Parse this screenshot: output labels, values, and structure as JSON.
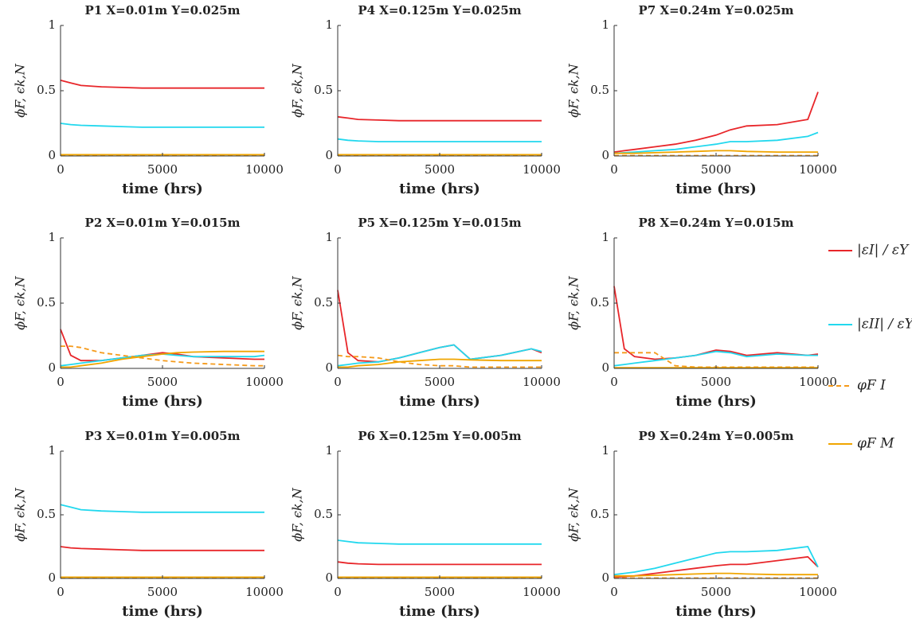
{
  "chart_data": [
    {
      "type": "line",
      "title": "P1 X=0.01m Y=0.025m",
      "xlabel": "time (hrs)",
      "ylabel": "ϕF, ϵk,N",
      "x": [
        0,
        500,
        1000,
        2000,
        3000,
        4000,
        5000,
        5700,
        6500,
        8000,
        9500,
        10000
      ],
      "xlim": [
        0,
        10000
      ],
      "xticks": [
        0,
        5000,
        10000
      ],
      "ylim": [
        0,
        1
      ],
      "yticks": [
        0,
        0.5,
        1
      ],
      "series": [
        {
          "name": "|εI| / εY",
          "color": "#e8262a",
          "values": [
            0.58,
            0.56,
            0.54,
            0.53,
            0.525,
            0.52,
            0.52,
            0.52,
            0.52,
            0.52,
            0.52,
            0.52
          ]
        },
        {
          "name": "|εII| / εY",
          "color": "#22d8ee",
          "values": [
            0.25,
            0.24,
            0.235,
            0.23,
            0.225,
            0.22,
            0.22,
            0.22,
            0.22,
            0.22,
            0.22,
            0.22
          ]
        },
        {
          "name": "φF I",
          "color": "#f59a1a",
          "dashed": true,
          "values": [
            0.005,
            0.005,
            0.005,
            0.005,
            0.005,
            0.005,
            0.005,
            0.005,
            0.005,
            0.005,
            0.005,
            0.005
          ]
        },
        {
          "name": "φF M",
          "color": "#f0a500",
          "values": [
            0.01,
            0.01,
            0.01,
            0.01,
            0.01,
            0.01,
            0.01,
            0.01,
            0.01,
            0.01,
            0.01,
            0.01
          ]
        }
      ]
    },
    {
      "type": "line",
      "title": "P2 X=0.01m Y=0.015m",
      "xlabel": "time (hrs)",
      "ylabel": "ϕF, ϵk,N",
      "x": [
        0,
        500,
        1000,
        2000,
        3000,
        4000,
        5000,
        5700,
        6500,
        8000,
        9500,
        10000
      ],
      "xlim": [
        0,
        10000
      ],
      "xticks": [
        0,
        5000,
        10000
      ],
      "ylim": [
        0,
        1
      ],
      "yticks": [
        0,
        0.5,
        1
      ],
      "series": [
        {
          "color": "#e8262a",
          "values": [
            0.3,
            0.1,
            0.06,
            0.06,
            0.08,
            0.1,
            0.12,
            0.11,
            0.09,
            0.08,
            0.07,
            0.07
          ]
        },
        {
          "color": "#22d8ee",
          "values": [
            0.02,
            0.03,
            0.04,
            0.06,
            0.08,
            0.1,
            0.11,
            0.1,
            0.09,
            0.09,
            0.09,
            0.1
          ]
        },
        {
          "color": "#f59a1a",
          "dashed": true,
          "values": [
            0.17,
            0.17,
            0.16,
            0.12,
            0.1,
            0.08,
            0.06,
            0.05,
            0.04,
            0.03,
            0.02,
            0.02
          ]
        },
        {
          "color": "#f0a500",
          "values": [
            0.01,
            0.01,
            0.02,
            0.04,
            0.07,
            0.09,
            0.11,
            0.12,
            0.125,
            0.13,
            0.13,
            0.13
          ]
        }
      ]
    },
    {
      "type": "line",
      "title": "P3 X=0.01m Y=0.005m",
      "xlabel": "time (hrs)",
      "ylabel": "ϕF, ϵk,N",
      "x": [
        0,
        500,
        1000,
        2000,
        3000,
        4000,
        5000,
        5700,
        6500,
        8000,
        9500,
        10000
      ],
      "xlim": [
        0,
        10000
      ],
      "xticks": [
        0,
        5000,
        10000
      ],
      "ylim": [
        0,
        1
      ],
      "yticks": [
        0,
        0.5,
        1
      ],
      "series": [
        {
          "color": "#e8262a",
          "values": [
            0.25,
            0.24,
            0.235,
            0.23,
            0.225,
            0.22,
            0.22,
            0.22,
            0.22,
            0.22,
            0.22,
            0.22
          ]
        },
        {
          "color": "#22d8ee",
          "values": [
            0.58,
            0.56,
            0.54,
            0.53,
            0.525,
            0.52,
            0.52,
            0.52,
            0.52,
            0.52,
            0.52,
            0.52
          ]
        },
        {
          "color": "#f59a1a",
          "dashed": true,
          "values": [
            0.005,
            0.005,
            0.005,
            0.005,
            0.005,
            0.005,
            0.005,
            0.005,
            0.005,
            0.005,
            0.005,
            0.005
          ]
        },
        {
          "color": "#f0a500",
          "values": [
            0.01,
            0.01,
            0.01,
            0.01,
            0.01,
            0.01,
            0.01,
            0.01,
            0.01,
            0.01,
            0.01,
            0.01
          ]
        }
      ]
    },
    {
      "type": "line",
      "title": "P4 X=0.125m Y=0.025m",
      "xlabel": "time (hrs)",
      "ylabel": "ϕF, ϵk,N",
      "x": [
        0,
        500,
        1000,
        2000,
        3000,
        4000,
        5000,
        5700,
        6500,
        8000,
        9500,
        10000
      ],
      "xlim": [
        0,
        10000
      ],
      "xticks": [
        0,
        5000,
        10000
      ],
      "ylim": [
        0,
        1
      ],
      "yticks": [
        0,
        0.5,
        1
      ],
      "series": [
        {
          "color": "#e8262a",
          "values": [
            0.3,
            0.29,
            0.28,
            0.275,
            0.27,
            0.27,
            0.27,
            0.27,
            0.27,
            0.27,
            0.27,
            0.27
          ]
        },
        {
          "color": "#22d8ee",
          "values": [
            0.13,
            0.12,
            0.115,
            0.11,
            0.11,
            0.11,
            0.11,
            0.11,
            0.11,
            0.11,
            0.11,
            0.11
          ]
        },
        {
          "color": "#f59a1a",
          "dashed": true,
          "values": [
            0.005,
            0.005,
            0.005,
            0.005,
            0.005,
            0.005,
            0.005,
            0.005,
            0.005,
            0.005,
            0.005,
            0.005
          ]
        },
        {
          "color": "#f0a500",
          "values": [
            0.01,
            0.01,
            0.01,
            0.01,
            0.01,
            0.01,
            0.01,
            0.01,
            0.01,
            0.01,
            0.01,
            0.01
          ]
        }
      ]
    },
    {
      "type": "line",
      "title": "P5 X=0.125m Y=0.015m",
      "xlabel": "time (hrs)",
      "ylabel": "ϕF, ϵk,N",
      "x": [
        0,
        500,
        1000,
        2000,
        3000,
        4000,
        5000,
        5700,
        6500,
        8000,
        9500,
        10000
      ],
      "xlim": [
        0,
        10000
      ],
      "xticks": [
        0,
        5000,
        10000
      ],
      "ylim": [
        0,
        1
      ],
      "yticks": [
        0,
        0.5,
        1
      ],
      "series": [
        {
          "color": "#e8262a",
          "values": [
            0.6,
            0.12,
            0.06,
            0.05,
            0.08,
            0.12,
            0.16,
            0.18,
            0.07,
            0.1,
            0.15,
            0.12
          ]
        },
        {
          "color": "#22d8ee",
          "values": [
            0.02,
            0.03,
            0.04,
            0.05,
            0.08,
            0.12,
            0.16,
            0.18,
            0.07,
            0.1,
            0.15,
            0.13
          ]
        },
        {
          "color": "#f59a1a",
          "dashed": true,
          "values": [
            0.1,
            0.09,
            0.09,
            0.08,
            0.05,
            0.03,
            0.02,
            0.02,
            0.01,
            0.01,
            0.01,
            0.01
          ]
        },
        {
          "color": "#f0a500",
          "values": [
            0.01,
            0.01,
            0.02,
            0.03,
            0.05,
            0.06,
            0.07,
            0.07,
            0.065,
            0.06,
            0.06,
            0.06
          ]
        }
      ]
    },
    {
      "type": "line",
      "title": "P6 X=0.125m Y=0.005m",
      "xlabel": "time (hrs)",
      "ylabel": "ϕF, ϵk,N",
      "x": [
        0,
        500,
        1000,
        2000,
        3000,
        4000,
        5000,
        5700,
        6500,
        8000,
        9500,
        10000
      ],
      "xlim": [
        0,
        10000
      ],
      "xticks": [
        0,
        5000,
        10000
      ],
      "ylim": [
        0,
        1
      ],
      "yticks": [
        0,
        0.5,
        1
      ],
      "series": [
        {
          "color": "#e8262a",
          "values": [
            0.13,
            0.12,
            0.115,
            0.11,
            0.11,
            0.11,
            0.11,
            0.11,
            0.11,
            0.11,
            0.11,
            0.11
          ]
        },
        {
          "color": "#22d8ee",
          "values": [
            0.3,
            0.29,
            0.28,
            0.275,
            0.27,
            0.27,
            0.27,
            0.27,
            0.27,
            0.27,
            0.27,
            0.27
          ]
        },
        {
          "color": "#f59a1a",
          "dashed": true,
          "values": [
            0.005,
            0.005,
            0.005,
            0.005,
            0.005,
            0.005,
            0.005,
            0.005,
            0.005,
            0.005,
            0.005,
            0.005
          ]
        },
        {
          "color": "#f0a500",
          "values": [
            0.01,
            0.01,
            0.01,
            0.01,
            0.01,
            0.01,
            0.01,
            0.01,
            0.01,
            0.01,
            0.01,
            0.01
          ]
        }
      ]
    },
    {
      "type": "line",
      "title": "P7 X=0.24m Y=0.025m",
      "xlabel": "time (hrs)",
      "ylabel": "ϕF, ϵk,N",
      "x": [
        0,
        500,
        1000,
        2000,
        3000,
        4000,
        5000,
        5700,
        6500,
        8000,
        9500,
        10000
      ],
      "xlim": [
        0,
        10000
      ],
      "xticks": [
        0,
        5000,
        10000
      ],
      "ylim": [
        0,
        1
      ],
      "yticks": [
        0,
        0.5,
        1
      ],
      "series": [
        {
          "color": "#e8262a",
          "values": [
            0.03,
            0.04,
            0.05,
            0.07,
            0.09,
            0.12,
            0.16,
            0.2,
            0.23,
            0.24,
            0.28,
            0.49
          ]
        },
        {
          "color": "#22d8ee",
          "values": [
            0.02,
            0.025,
            0.03,
            0.04,
            0.05,
            0.07,
            0.09,
            0.11,
            0.11,
            0.12,
            0.15,
            0.18
          ]
        },
        {
          "color": "#f59a1a",
          "dashed": true,
          "values": [
            0.003,
            0.003,
            0.003,
            0.003,
            0.003,
            0.003,
            0.003,
            0.003,
            0.003,
            0.003,
            0.003,
            0.003
          ]
        },
        {
          "color": "#f0a500",
          "values": [
            0.02,
            0.02,
            0.02,
            0.025,
            0.03,
            0.035,
            0.04,
            0.04,
            0.035,
            0.03,
            0.03,
            0.03
          ]
        }
      ]
    },
    {
      "type": "line",
      "title": "P8 X=0.24m Y=0.015m",
      "xlabel": "time (hrs)",
      "ylabel": "ϕF, ϵk,N",
      "x": [
        0,
        500,
        1000,
        2000,
        3000,
        4000,
        5000,
        5700,
        6500,
        8000,
        9500,
        10000
      ],
      "xlim": [
        0,
        10000
      ],
      "xticks": [
        0,
        5000,
        10000
      ],
      "ylim": [
        0,
        1
      ],
      "yticks": [
        0,
        0.5,
        1
      ],
      "series": [
        {
          "color": "#e8262a",
          "values": [
            0.63,
            0.15,
            0.09,
            0.07,
            0.08,
            0.1,
            0.14,
            0.13,
            0.1,
            0.12,
            0.1,
            0.11
          ]
        },
        {
          "color": "#22d8ee",
          "values": [
            0.02,
            0.03,
            0.04,
            0.06,
            0.08,
            0.1,
            0.13,
            0.12,
            0.09,
            0.11,
            0.1,
            0.1
          ]
        },
        {
          "color": "#f59a1a",
          "dashed": true,
          "values": [
            0.12,
            0.12,
            0.12,
            0.12,
            0.02,
            0.01,
            0.01,
            0.01,
            0.01,
            0.01,
            0.01,
            0.01
          ]
        },
        {
          "color": "#f0a500",
          "values": [
            0.005,
            0.005,
            0.005,
            0.005,
            0.005,
            0.005,
            0.005,
            0.005,
            0.005,
            0.005,
            0.005,
            0.005
          ]
        }
      ]
    },
    {
      "type": "line",
      "title": "P9 X=0.24m Y=0.005m",
      "xlabel": "time (hrs)",
      "ylabel": "ϕF, ϵk,N",
      "x": [
        0,
        500,
        1000,
        2000,
        3000,
        4000,
        5000,
        5700,
        6500,
        8000,
        9500,
        10000
      ],
      "xlim": [
        0,
        10000
      ],
      "xticks": [
        0,
        5000,
        10000
      ],
      "ylim": [
        0,
        1
      ],
      "yticks": [
        0,
        0.5,
        1
      ],
      "series": [
        {
          "color": "#e8262a",
          "values": [
            0.01,
            0.015,
            0.02,
            0.04,
            0.06,
            0.08,
            0.1,
            0.11,
            0.11,
            0.14,
            0.17,
            0.09
          ]
        },
        {
          "color": "#22d8ee",
          "values": [
            0.03,
            0.04,
            0.05,
            0.08,
            0.12,
            0.16,
            0.2,
            0.21,
            0.21,
            0.22,
            0.25,
            0.09
          ]
        },
        {
          "color": "#f59a1a",
          "dashed": true,
          "values": [
            0.003,
            0.003,
            0.003,
            0.003,
            0.003,
            0.003,
            0.003,
            0.003,
            0.003,
            0.003,
            0.003,
            0.003
          ]
        },
        {
          "color": "#f0a500",
          "values": [
            0.02,
            0.02,
            0.02,
            0.025,
            0.03,
            0.035,
            0.04,
            0.04,
            0.035,
            0.03,
            0.03,
            0.03
          ]
        }
      ]
    }
  ]
}
